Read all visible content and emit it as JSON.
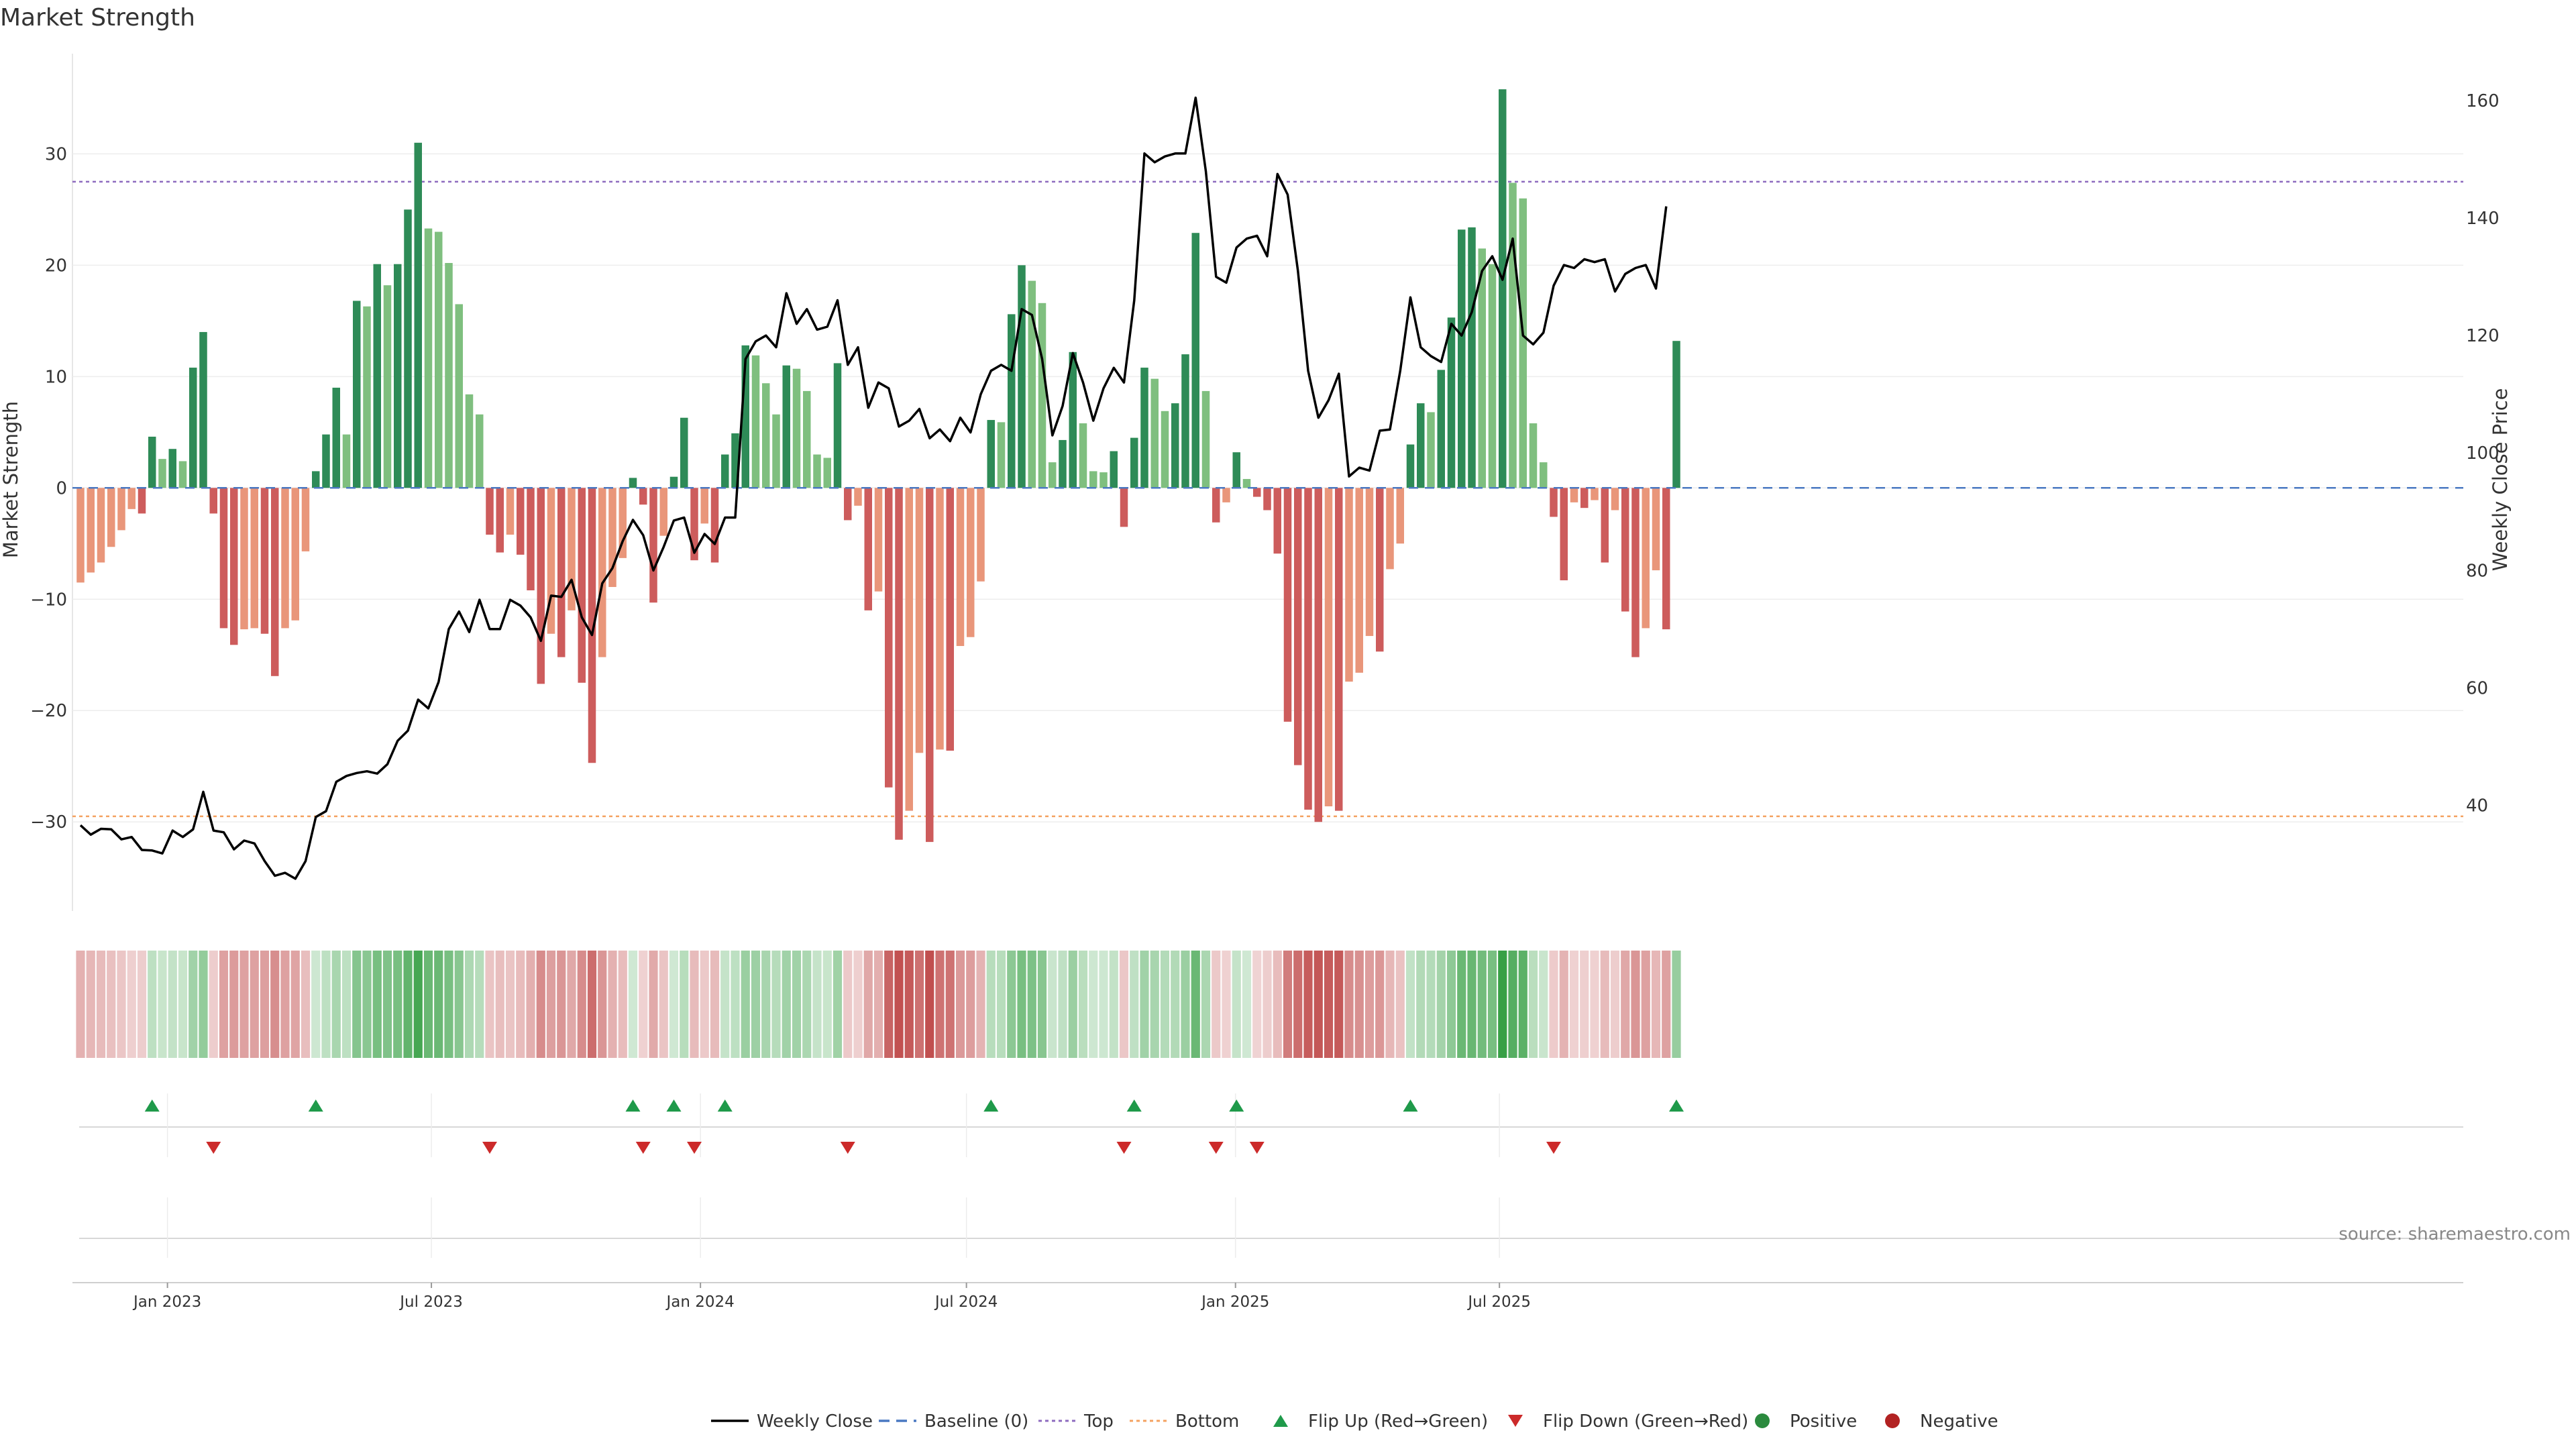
{
  "chart_data": {
    "type": "bar",
    "title": "Market Strength",
    "ylabel_left": "Market Strength",
    "ylabel_right": "Weekly Close Price",
    "ylim_left": [
      -38,
      39
    ],
    "ylim_right": [
      22,
      168
    ],
    "yticks_left": [
      30,
      20,
      10,
      0,
      -10,
      -20,
      -30
    ],
    "yticks_left_labels": [
      "30",
      "20",
      "10",
      "0",
      "−10",
      "−20",
      "−30"
    ],
    "yticks_right": [
      160,
      140,
      120,
      100,
      80,
      60,
      40
    ],
    "yticks_right_labels": [
      "160",
      "140",
      "120",
      "100",
      "80",
      "60",
      "40"
    ],
    "top_threshold": 27.5,
    "bottom_threshold": -29.5,
    "x_start": "2022-11-06",
    "week_days": 7,
    "xticks": [
      {
        "label": "Jan 2023",
        "week": 8.5
      },
      {
        "label": "Jul 2023",
        "week": 34.3
      },
      {
        "label": "Jan 2024",
        "week": 60.6
      },
      {
        "label": "Jul 2024",
        "week": 86.6
      },
      {
        "label": "Jan 2025",
        "week": 112.9
      },
      {
        "label": "Jul 2025",
        "week": 138.7
      }
    ],
    "series": [
      {
        "name": "Market Strength",
        "values": [
          -8.5,
          -7.6,
          -6.7,
          -5.3,
          -3.8,
          -1.9,
          -2.3,
          4.6,
          2.6,
          3.5,
          2.4,
          10.8,
          14.0,
          -2.3,
          -12.6,
          -14.1,
          -12.7,
          -12.6,
          -13.1,
          -16.9,
          -12.6,
          -11.9,
          -5.7,
          1.5,
          4.8,
          9.0,
          4.8,
          16.8,
          16.3,
          20.1,
          18.2,
          20.1,
          25.0,
          31.0,
          23.3,
          23.0,
          20.2,
          16.5,
          8.4,
          6.6,
          -4.2,
          -5.8,
          -4.2,
          -6.0,
          -9.2,
          -17.6,
          -13.1,
          -15.2,
          -11.0,
          -17.5,
          -24.7,
          -15.2,
          -8.9,
          -6.3,
          0.9,
          -1.5,
          -10.3,
          -4.3,
          1.0,
          6.3,
          -6.5,
          -3.2,
          -6.7,
          3.0,
          4.9,
          12.8,
          11.9,
          9.4,
          6.6,
          11.0,
          10.7,
          8.7,
          3.0,
          2.7,
          11.2,
          -2.9,
          -1.6,
          -11.0,
          -9.3,
          -26.9,
          -31.6,
          -29.0,
          -23.8,
          -31.8,
          -23.5,
          -23.6,
          -14.2,
          -13.4,
          -8.4,
          6.1,
          5.9,
          15.6,
          20.0,
          18.6,
          16.6,
          2.3,
          4.3,
          12.2,
          5.8,
          1.5,
          1.4,
          3.3,
          -3.5,
          4.5,
          10.8,
          9.8,
          6.9,
          7.6,
          12.0,
          22.9,
          8.7,
          -3.1,
          -1.3,
          3.2,
          0.8,
          -0.8,
          -2.0,
          -5.9,
          -21.0,
          -24.9,
          -28.9,
          -30.0,
          -28.6,
          -29.0,
          -17.4,
          -16.6,
          -13.3,
          -14.7,
          -7.3,
          -5.0,
          3.9,
          7.6,
          6.8,
          10.6,
          15.3,
          23.2,
          23.4,
          21.5,
          20.1,
          35.8,
          27.4,
          26.0,
          5.8,
          2.3,
          -2.6,
          -8.3,
          -1.3,
          -1.8,
          -1.1,
          -6.7,
          -2.0,
          -11.1,
          -15.2,
          -12.6,
          -7.4,
          -12.7,
          13.2
        ]
      },
      {
        "name": "Weekly Close",
        "values": [
          36.6,
          35.0,
          36.0,
          35.9,
          34.2,
          34.6,
          32.4,
          32.3,
          31.8,
          35.7,
          34.6,
          35.9,
          42.3,
          35.7,
          35.4,
          32.5,
          34.0,
          33.5,
          30.5,
          28.0,
          28.5,
          27.5,
          30.5,
          38.0,
          39.0,
          44.0,
          45.0,
          45.5,
          45.8,
          45.4,
          47.0,
          51.0,
          52.7,
          58.0,
          56.5,
          61.0,
          70.0,
          73.0,
          69.5,
          75.0,
          70.0,
          70.0,
          75.0,
          74.0,
          72.0,
          68.0,
          75.7,
          75.5,
          78.4,
          72.0,
          69.0,
          77.8,
          80.4,
          85.0,
          88.6,
          86.0,
          80.0,
          84.0,
          88.5,
          89.0,
          83.0,
          86.2,
          84.5,
          89.0,
          89.0,
          116.0,
          119.0,
          120.0,
          118.0,
          127.2,
          122.0,
          124.5,
          121.0,
          121.5,
          126.0,
          115.0,
          118.0,
          107.7,
          112.0,
          111.0,
          104.5,
          105.5,
          107.5,
          102.5,
          104.0,
          102.0,
          106.0,
          103.5,
          110.0,
          114.0,
          115.0,
          114.0,
          124.5,
          123.5,
          116.0,
          103.0,
          108.0,
          117.0,
          112.0,
          105.5,
          111.0,
          114.5,
          112.0,
          126.0,
          151.0,
          149.5,
          150.5,
          151.0,
          151.0,
          160.5,
          148.0,
          130.0,
          129.0,
          135.0,
          136.5,
          137.0,
          133.5,
          147.5,
          144.0,
          131.0,
          114.0,
          106.0,
          109.0,
          113.5,
          96.0,
          97.5,
          97.0,
          103.8,
          104.0,
          114.0,
          126.5,
          118.0,
          116.5,
          115.5,
          122.0,
          120.0,
          124.0,
          131.0,
          133.5,
          129.5,
          136.5,
          120.0,
          118.5,
          120.5,
          128.5,
          132.0,
          131.5,
          133.0,
          132.5,
          133.0,
          127.5,
          130.5,
          131.5,
          132.0,
          128.0,
          142.0
        ]
      }
    ],
    "flip_up_weeks": [
      7,
      23,
      54,
      58,
      63,
      89,
      103,
      113,
      130,
      156
    ],
    "flip_down_weeks": [
      13,
      40,
      55,
      60,
      75,
      102,
      111,
      115,
      144
    ],
    "legend": [
      {
        "label": "Weekly Close",
        "type": "line",
        "color": "#000000"
      },
      {
        "label": "Baseline (0)",
        "type": "dash",
        "color": "#4a78c2"
      },
      {
        "label": "Top",
        "type": "dot",
        "color": "#8e6bbf"
      },
      {
        "label": "Bottom",
        "type": "dot",
        "color": "#f4a261"
      },
      {
        "label": "Flip Up (Red→Green)",
        "type": "tri-up",
        "color": "#1f9a4a"
      },
      {
        "label": "Flip Down (Green→Red)",
        "type": "tri-down",
        "color": "#cc2a2a"
      },
      {
        "label": "Positive",
        "type": "circle",
        "color": "#2b8a3e"
      },
      {
        "label": "Negative",
        "type": "circle",
        "color": "#b22222"
      }
    ],
    "source": "source: sharemaestro.com",
    "colors": {
      "pos_dark": "#2e8b57",
      "pos_light": "#7fbf7f",
      "neg_dark": "#cd5c5c",
      "neg_light": "#e9967a",
      "flip_up": "#1f9a4a",
      "flip_down": "#cc2a2a",
      "top": "#8e6bbf",
      "bottom": "#f4a261",
      "baseline": "#4a78c2"
    }
  }
}
